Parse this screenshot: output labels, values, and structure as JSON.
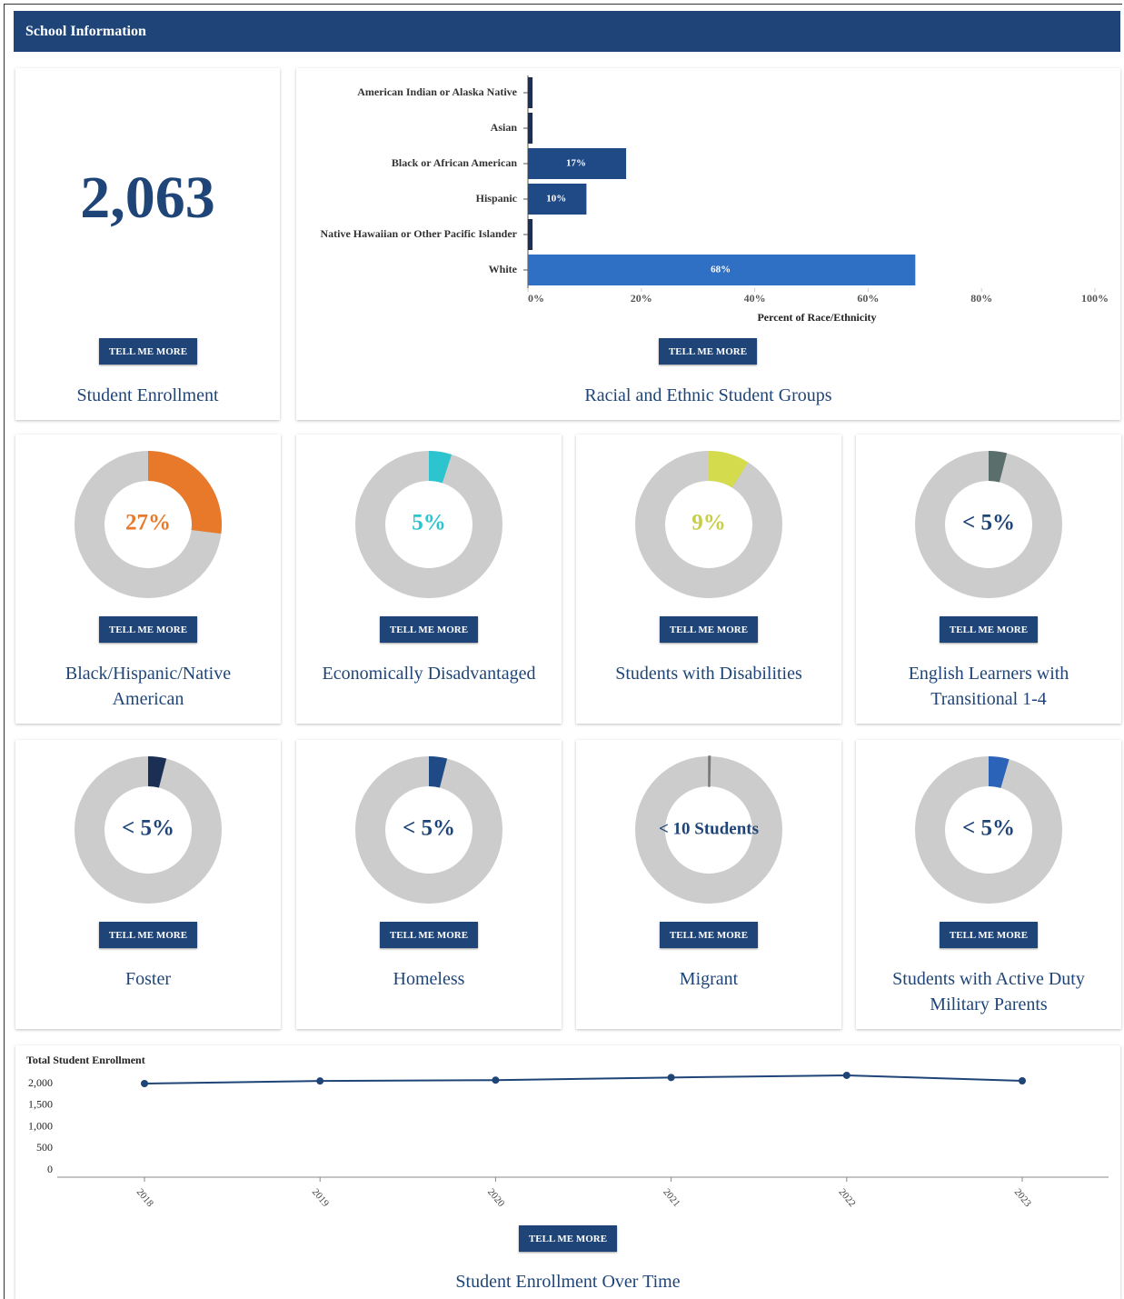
{
  "header": {
    "title": "School Information"
  },
  "button_label": "TELL ME MORE",
  "enrollment": {
    "value": "2,063",
    "caption": "Student Enrollment"
  },
  "chart_data": [
    {
      "type": "bar",
      "orientation": "horizontal",
      "caption": "Racial and Ethnic Student Groups",
      "x_label": "Percent of Race/Ethnicity",
      "categories": [
        "American Indian or Alaska Native",
        "Asian",
        "Black or African American",
        "Hispanic",
        "Native Hawaiian or Other Pacific Islander",
        "White"
      ],
      "values": [
        0.5,
        0.5,
        17,
        10,
        0.5,
        68
      ],
      "value_labels": [
        null,
        null,
        "17%",
        "10%",
        null,
        "68%"
      ],
      "colors": [
        "#1b2f55",
        "#1b2f55",
        "#1f4a86",
        "#1f4a86",
        "#1b2f55",
        "#2f6fc4"
      ],
      "xlim": [
        0,
        100
      ],
      "xticks": [
        {
          "value": 0,
          "label": "0%"
        },
        {
          "value": 20,
          "label": "20%"
        },
        {
          "value": 40,
          "label": "40%"
        },
        {
          "value": 60,
          "label": "60%"
        },
        {
          "value": 80,
          "label": "80%"
        },
        {
          "value": 100,
          "label": "100%"
        }
      ]
    },
    {
      "type": "donut",
      "caption": "Black/Hispanic/Native American",
      "values": [
        27
      ],
      "value_labels": [
        "27%"
      ],
      "color": "#e8792b",
      "text_color": "#e8792b"
    },
    {
      "type": "donut",
      "caption": "Economically Disadvantaged",
      "values": [
        5
      ],
      "value_labels": [
        "5%"
      ],
      "color": "#2bc4cf",
      "text_color": "#2bc4cf"
    },
    {
      "type": "donut",
      "caption": "Students with Disabilities",
      "values": [
        9
      ],
      "value_labels": [
        "9%"
      ],
      "color": "#d4dc4e",
      "text_color": "#c6cf44"
    },
    {
      "type": "donut",
      "caption": "English Learners with Transitional 1-4",
      "values": [
        4
      ],
      "value_labels": [
        "< 5%"
      ],
      "color": "#5a6e6b",
      "text_color": "#1f4578"
    },
    {
      "type": "donut",
      "caption": "Foster",
      "values": [
        4
      ],
      "value_labels": [
        "< 5%"
      ],
      "color": "#1b2f55",
      "text_color": "#1f4578"
    },
    {
      "type": "donut",
      "caption": "Homeless",
      "values": [
        4
      ],
      "value_labels": [
        "< 5%"
      ],
      "color": "#1f4a86",
      "text_color": "#1f4578"
    },
    {
      "type": "donut",
      "caption": "Migrant",
      "values": [
        0.3
      ],
      "value_labels": [
        "< 10 Students"
      ],
      "color": "#777777",
      "text_color": "#1f4578"
    },
    {
      "type": "donut",
      "caption": "Students with Active Duty Military Parents",
      "values": [
        4.5
      ],
      "value_labels": [
        "< 5%"
      ],
      "color": "#2b63b8",
      "text_color": "#1f4578"
    },
    {
      "type": "line",
      "caption": "Student Enrollment Over Time",
      "y_label": "Total Student Enrollment",
      "categories": [
        "2018",
        "2019",
        "2020",
        "2021",
        "2022",
        "2023"
      ],
      "values": [
        2000,
        2060,
        2080,
        2140,
        2190,
        2063
      ],
      "color": "#1f4578",
      "ylim": [
        0,
        2200
      ],
      "yticks": [
        0,
        500,
        {
          "value": 1000,
          "label": "1,000"
        },
        {
          "value": 1500,
          "label": "1,500"
        },
        {
          "value": 2000,
          "label": "2,000"
        }
      ]
    }
  ]
}
